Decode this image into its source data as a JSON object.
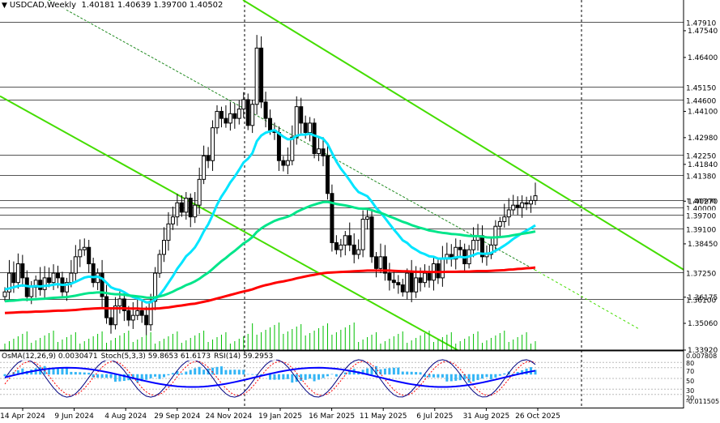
{
  "header": {
    "symbol_tf": "USDCAD,Weekly",
    "ohlc": "1.40181 1.40639 1.39700 1.40502"
  },
  "indicator_header": {
    "osma": "OsMA(12,26,9) 0.0030471",
    "stoch": "Stoch(5,3,3) 59.8653 61.6173",
    "rsi": "RSI(14) 59.2953"
  },
  "colors": {
    "candle": "#000000",
    "ema_fast": "#00e5ff",
    "ema_mid": "#00e58a",
    "ema_slow": "#ff0000",
    "channel": "#44dd00",
    "volume": "#00c000",
    "osma_hist": "#33b5f5",
    "stoch_main": "#000080",
    "rsi": "#0000ff",
    "stoch_signal": "#ff0000"
  },
  "chart_data": {
    "type": "candlestick",
    "symbol": "USDCAD",
    "timeframe": "Weekly",
    "price_range": [
      1.3392,
      1.4885
    ],
    "y_ticks": [
      "1.47540",
      "1.46400",
      "1.44100",
      "1.42980",
      "1.41840",
      "1.40270",
      "1.38450",
      "1.36175",
      "1.35060",
      "1.33920"
    ],
    "levels": [
      {
        "label": "1.47910",
        "value": 1.4791
      },
      {
        "label": "1.45150",
        "value": 1.4515
      },
      {
        "label": "1.44600",
        "value": 1.446
      },
      {
        "label": "1.42250",
        "value": 1.4225
      },
      {
        "label": "1.41380",
        "value": 1.4138
      },
      {
        "label": "1.40300",
        "value": 1.403
      },
      {
        "label": "1.40000",
        "value": 1.4
      },
      {
        "label": "1.39700",
        "value": 1.397
      },
      {
        "label": "1.39100",
        "value": 1.391
      },
      {
        "label": "1.37250",
        "value": 1.3725
      },
      {
        "label": "1.36100",
        "value": 1.361
      }
    ],
    "x_labels": [
      "14 Apr 2024",
      "9 Jun 2024",
      "4 Aug 2024",
      "29 Sep 2024",
      "24 Nov 2024",
      "19 Jan 2025",
      "16 Mar 2025",
      "11 May 2025",
      "6 Jul 2025",
      "31 Aug 2025",
      "26 Oct 2025"
    ],
    "closes": [
      1.364,
      1.372,
      1.368,
      1.376,
      1.37,
      1.362,
      1.366,
      1.369,
      1.365,
      1.37,
      1.368,
      1.372,
      1.37,
      1.364,
      1.368,
      1.372,
      1.379,
      1.382,
      1.383,
      1.376,
      1.368,
      1.372,
      1.362,
      1.353,
      1.35,
      1.358,
      1.361,
      1.356,
      1.352,
      1.354,
      1.356,
      1.354,
      1.35,
      1.36,
      1.372,
      1.38,
      1.386,
      1.393,
      1.396,
      1.402,
      1.398,
      1.404,
      1.396,
      1.401,
      1.412,
      1.422,
      1.42,
      1.434,
      1.441,
      1.438,
      1.436,
      1.44,
      1.438,
      1.442,
      1.446,
      1.435,
      1.444,
      1.468,
      1.445,
      1.438,
      1.433,
      1.432,
      1.42,
      1.418,
      1.42,
      1.43,
      1.443,
      1.436,
      1.432,
      1.436,
      1.423,
      1.425,
      1.422,
      1.406,
      1.385,
      1.382,
      1.384,
      1.388,
      1.384,
      1.38,
      1.382,
      1.395,
      1.396,
      1.379,
      1.374,
      1.379,
      1.372,
      1.369,
      1.368,
      1.367,
      1.364,
      1.372,
      1.364,
      1.37,
      1.368,
      1.372,
      1.369,
      1.376,
      1.37,
      1.378,
      1.38,
      1.378,
      1.383,
      1.382,
      1.376,
      1.382,
      1.386,
      1.388,
      1.379,
      1.38,
      1.384,
      1.392,
      1.394,
      1.396,
      1.399,
      1.401,
      1.4,
      1.402,
      1.4015,
      1.403,
      1.405
    ],
    "series": [
      {
        "name": "EMA fast (cyan)",
        "values": [
          1.365,
          1.3655,
          1.366,
          1.3665,
          1.3668,
          1.3665,
          1.3663,
          1.3665,
          1.3663,
          1.3666,
          1.3667,
          1.3671,
          1.3673,
          1.367,
          1.3671,
          1.3675,
          1.3683,
          1.3692,
          1.3701,
          1.3705,
          1.3703,
          1.3705,
          1.3697,
          1.3679,
          1.366,
          1.3652,
          1.3648,
          1.3639,
          1.3627,
          1.3618,
          1.3612,
          1.3605,
          1.3595,
          1.3596,
          1.3608,
          1.3627,
          1.3651,
          1.3679,
          1.3707,
          1.3739,
          1.3764,
          1.3792,
          1.3809,
          1.383,
          1.3861,
          1.3898,
          1.3928,
          1.3968,
          1.4012,
          1.4047,
          1.4075,
          1.4107,
          1.4132,
          1.4161,
          1.4192,
          1.4208,
          1.4232,
          1.4283,
          1.4307,
          1.4319,
          1.4325,
          1.433,
          1.4316,
          1.4302,
          1.4291,
          1.4292,
          1.4306,
          1.4311,
          1.4311,
          1.4315,
          1.4307,
          1.4301,
          1.4293,
          1.4271,
          1.4233,
          1.4196,
          1.4166,
          1.4142,
          1.4116,
          1.4088,
          1.4066,
          1.4057,
          1.4048,
          1.4025,
          1.3998,
          1.3979,
          1.3955,
          1.393,
          1.3906,
          1.3884,
          1.386,
          1.3849,
          1.3831,
          1.382,
          1.3808,
          1.3801,
          1.3792,
          1.379,
          1.3782,
          1.3782,
          1.3783,
          1.3783,
          1.3787,
          1.379,
          1.3787,
          1.3791,
          1.3797,
          1.3805,
          1.3803,
          1.3803,
          1.3806,
          1.3816,
          1.3826,
          1.3838,
          1.3851,
          1.3866,
          1.3878,
          1.3891,
          1.3902,
          1.3912,
          1.3924
        ]
      },
      {
        "name": "EMA mid (green)",
        "values": [
          1.36,
          1.3602,
          1.3603,
          1.3605,
          1.3607,
          1.3607,
          1.3608,
          1.3609,
          1.361,
          1.3611,
          1.3613,
          1.3615,
          1.3616,
          1.3617,
          1.3618,
          1.3621,
          1.3624,
          1.3628,
          1.3632,
          1.3635,
          1.3636,
          1.3638,
          1.3638,
          1.3635,
          1.3632,
          1.363,
          1.363,
          1.3628,
          1.3625,
          1.3623,
          1.3621,
          1.3619,
          1.3616,
          1.3615,
          1.3617,
          1.3621,
          1.3626,
          1.3633,
          1.3641,
          1.3651,
          1.3659,
          1.3669,
          1.3676,
          1.3685,
          1.3696,
          1.371,
          1.3722,
          1.3738,
          1.3755,
          1.3771,
          1.3785,
          1.3801,
          1.3815,
          1.3831,
          1.3847,
          1.3859,
          1.3874,
          1.3896,
          1.3911,
          1.3923,
          1.3933,
          1.3943,
          1.395,
          1.3955,
          1.3961,
          1.3969,
          1.3981,
          1.399,
          1.3998,
          1.4006,
          1.4012,
          1.4018,
          1.4023,
          1.4024,
          1.402,
          1.4015,
          1.4012,
          1.4009,
          1.4005,
          1.4,
          1.3996,
          1.3995,
          1.3994,
          1.3989,
          1.3982,
          1.3977,
          1.397,
          1.3962,
          1.3955,
          1.3947,
          1.3939,
          1.3933,
          1.3925,
          1.3919,
          1.3913,
          1.3908,
          1.3902,
          1.3899,
          1.3895,
          1.3892,
          1.389,
          1.3887,
          1.3886,
          1.3884,
          1.3881,
          1.3879,
          1.3878,
          1.3878,
          1.3876,
          1.3873,
          1.3872,
          1.3873,
          1.3874,
          1.3876,
          1.3878,
          1.3882,
          1.3885,
          1.3888,
          1.3891,
          1.3894,
          1.3898
        ]
      },
      {
        "name": "EMA slow (red)",
        "values": [
          1.355,
          1.3551,
          1.3552,
          1.3553,
          1.3554,
          1.3554,
          1.3555,
          1.3556,
          1.3556,
          1.3557,
          1.3558,
          1.3559,
          1.356,
          1.356,
          1.3561,
          1.3562,
          1.3563,
          1.3565,
          1.3567,
          1.3568,
          1.3569,
          1.357,
          1.3571,
          1.357,
          1.357,
          1.357,
          1.357,
          1.357,
          1.3569,
          1.3569,
          1.3569,
          1.3568,
          1.3568,
          1.3568,
          1.3569,
          1.357,
          1.3572,
          1.3574,
          1.3577,
          1.358,
          1.3582,
          1.3585,
          1.3588,
          1.359,
          1.3594,
          1.3598,
          1.3602,
          1.3607,
          1.3612,
          1.3617,
          1.3622,
          1.3627,
          1.3632,
          1.3637,
          1.3642,
          1.3646,
          1.3651,
          1.3658,
          1.3664,
          1.3669,
          1.3673,
          1.3678,
          1.3682,
          1.3685,
          1.3689,
          1.3693,
          1.3698,
          1.3702,
          1.3706,
          1.371,
          1.3713,
          1.3717,
          1.372,
          1.3722,
          1.3723,
          1.3724,
          1.3725,
          1.3726,
          1.3727,
          1.3728,
          1.3729,
          1.373,
          1.3731,
          1.3731,
          1.3731,
          1.3731,
          1.3731,
          1.3731,
          1.373,
          1.3729,
          1.3728,
          1.3728,
          1.3727,
          1.3726,
          1.3726,
          1.3726,
          1.3725,
          1.3725,
          1.3725,
          1.3725,
          1.3726,
          1.3726,
          1.3726,
          1.3727,
          1.3727,
          1.3727,
          1.3728,
          1.3729,
          1.3729,
          1.3729,
          1.373,
          1.3731,
          1.3732,
          1.3733,
          1.3735,
          1.3736,
          1.3738,
          1.3739,
          1.3741,
          1.3742,
          1.3744
        ]
      }
    ],
    "indicators": [
      {
        "name": "OsMA(12,26,9)",
        "value": 0.0030471
      },
      {
        "name": "Stoch(5,3,3)",
        "main": 59.8653,
        "signal": 61.6173
      },
      {
        "name": "RSI(14)",
        "value": 59.2953
      }
    ],
    "indicator_axis": [
      "0.007808",
      "80",
      "70",
      "50",
      "30",
      "20",
      "-0.011505"
    ]
  }
}
